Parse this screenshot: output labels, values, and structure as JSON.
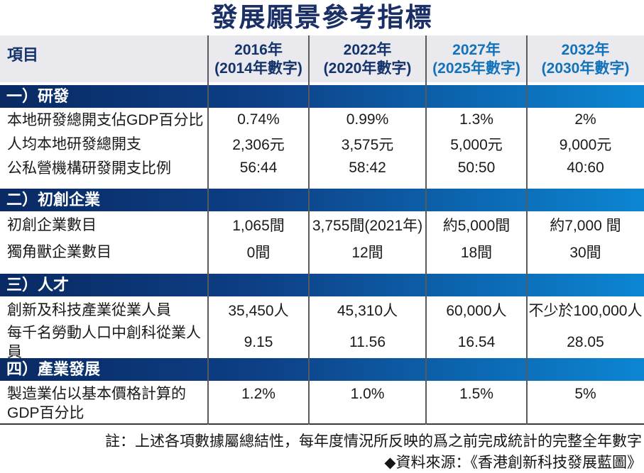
{
  "colors": {
    "title_navy": "#1a2f66",
    "header_bg": "#e9e9ee",
    "header_navy": "#14336b",
    "header_accent_blue": "#1373ba",
    "band_gradient_left": "#092a63",
    "band_gradient_right": "#0c86d3",
    "divider_gray": "#595a5e",
    "body_text": "#1a1a1a"
  },
  "chart_data": {
    "type": "table",
    "title": "發展願景參考指標",
    "columns": [
      {
        "label": "項目"
      },
      {
        "line1": "2016年",
        "line2": "(2014年數字)"
      },
      {
        "line1": "2022年",
        "line2": "(2020年數字)"
      },
      {
        "line1": "2027年",
        "line2": "(2025年數字)"
      },
      {
        "line1": "2032年",
        "line2": "(2030年數字)"
      }
    ],
    "sections": [
      {
        "label": "一）研發",
        "rows": [
          {
            "label": "本地研發總開支佔GDP百分比",
            "values": [
              "0.74%",
              "0.99%",
              "1.3%",
              "2%"
            ]
          },
          {
            "label": "人均本地研發總開支",
            "values": [
              "2,306元",
              "3,575元",
              "5,000元",
              "9,000元"
            ]
          },
          {
            "label": "公私營機構研發開支比例",
            "values": [
              "56:44",
              "58:42",
              "50:50",
              "40:60"
            ]
          }
        ]
      },
      {
        "label": "二）初創企業",
        "rows": [
          {
            "label": "初創企業數目",
            "values": [
              "1,065間",
              "3,755間(2021年)",
              "約5,000間",
              "約7,000 間"
            ]
          },
          {
            "label": "獨角獸企業數目",
            "values": [
              "0間",
              "12間",
              "18間",
              "30間"
            ]
          }
        ]
      },
      {
        "label": "三）人才",
        "rows": [
          {
            "label": "創新及科技產業從業人員",
            "values": [
              "35,450人",
              "45,310人",
              "60,000人",
              "不少於100,000人"
            ]
          },
          {
            "label": "每千名勞動人口中創科從業人員",
            "values": [
              "9.15",
              "11.56",
              "16.54",
              "28.05"
            ]
          }
        ]
      },
      {
        "label": "四）產業發展",
        "rows": [
          {
            "label": "製造業佔以基本價格計算的GDP百分比",
            "values": [
              "1.2%",
              "1.0%",
              "1.5%",
              "5%"
            ]
          }
        ]
      }
    ],
    "note": "註：上述各項數據屬總結性，每年度情況所反映的爲之前完成統計的完整全年數字",
    "source": "◆資料來源：《香港創新科技發展藍圖》"
  }
}
